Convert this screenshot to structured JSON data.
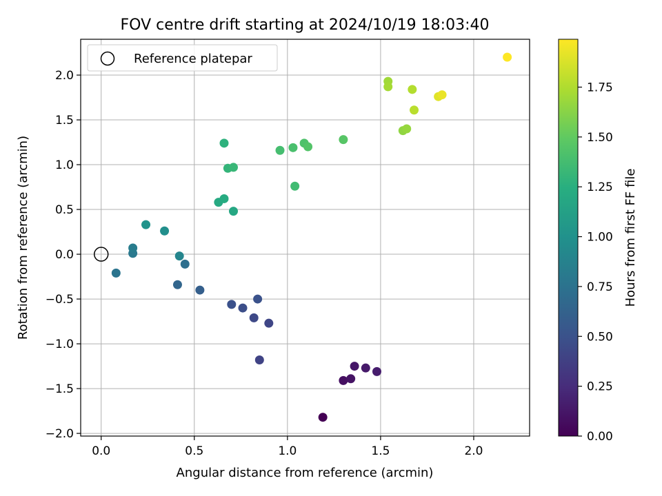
{
  "chart_data": {
    "type": "scatter",
    "title": "FOV centre drift starting at 2024/10/19 18:03:40",
    "xlabel": "Angular distance from reference (arcmin)",
    "ylabel": "Rotation from reference (arcmin)",
    "xlim": [
      -0.11,
      2.3
    ],
    "ylim": [
      -2.03,
      2.4
    ],
    "xticks": [
      0.0,
      0.5,
      1.0,
      1.5,
      2.0
    ],
    "xtick_labels": [
      "0.0",
      "0.5",
      "1.0",
      "1.5",
      "2.0"
    ],
    "yticks": [
      -2.0,
      -1.5,
      -1.0,
      -0.5,
      0.0,
      0.5,
      1.0,
      1.5,
      2.0
    ],
    "ytick_labels": [
      "−2.0",
      "−1.5",
      "−1.0",
      "−0.5",
      "0.0",
      "0.5",
      "1.0",
      "1.5",
      "2.0"
    ],
    "grid": true,
    "legend": {
      "position": "top-left",
      "entries": [
        "Reference platepar"
      ]
    },
    "reference_point": {
      "x": 0.0,
      "y": 0.0
    },
    "colorbar": {
      "label": "Hours from first FF file",
      "colormap": "viridis",
      "range": [
        0,
        1.99
      ],
      "ticks": [
        0.0,
        0.25,
        0.5,
        0.75,
        1.0,
        1.25,
        1.5,
        1.75
      ],
      "tick_labels": [
        "0.00",
        "0.25",
        "0.50",
        "0.75",
        "1.00",
        "1.25",
        "1.50",
        "1.75"
      ]
    },
    "points": [
      {
        "x": 1.19,
        "y": -1.82,
        "c": 0.0
      },
      {
        "x": 1.3,
        "y": -1.41,
        "c": 0.08
      },
      {
        "x": 1.34,
        "y": -1.39,
        "c": 0.1
      },
      {
        "x": 1.36,
        "y": -1.25,
        "c": 0.12
      },
      {
        "x": 1.42,
        "y": -1.27,
        "c": 0.14
      },
      {
        "x": 1.48,
        "y": -1.31,
        "c": 0.16
      },
      {
        "x": 0.85,
        "y": -1.18,
        "c": 0.4
      },
      {
        "x": 0.9,
        "y": -0.77,
        "c": 0.42
      },
      {
        "x": 0.82,
        "y": -0.71,
        "c": 0.44
      },
      {
        "x": 0.76,
        "y": -0.6,
        "c": 0.47
      },
      {
        "x": 0.7,
        "y": -0.56,
        "c": 0.49
      },
      {
        "x": 0.84,
        "y": -0.5,
        "c": 0.5
      },
      {
        "x": 0.53,
        "y": -0.4,
        "c": 0.6
      },
      {
        "x": 0.41,
        "y": -0.34,
        "c": 0.65
      },
      {
        "x": 0.45,
        "y": -0.11,
        "c": 0.72
      },
      {
        "x": 0.08,
        "y": -0.21,
        "c": 0.76
      },
      {
        "x": 0.17,
        "y": 0.01,
        "c": 0.8
      },
      {
        "x": 0.17,
        "y": 0.07,
        "c": 0.83
      },
      {
        "x": 0.42,
        "y": -0.02,
        "c": 0.9
      },
      {
        "x": 0.34,
        "y": 0.26,
        "c": 0.98
      },
      {
        "x": 0.24,
        "y": 0.33,
        "c": 1.01
      },
      {
        "x": 0.71,
        "y": 0.48,
        "c": 1.18
      },
      {
        "x": 0.63,
        "y": 0.58,
        "c": 1.2
      },
      {
        "x": 0.66,
        "y": 0.62,
        "c": 1.22
      },
      {
        "x": 0.66,
        "y": 1.24,
        "c": 1.27
      },
      {
        "x": 0.68,
        "y": 0.96,
        "c": 1.3
      },
      {
        "x": 0.71,
        "y": 0.97,
        "c": 1.32
      },
      {
        "x": 1.04,
        "y": 0.76,
        "c": 1.36
      },
      {
        "x": 0.96,
        "y": 1.16,
        "c": 1.38
      },
      {
        "x": 1.03,
        "y": 1.19,
        "c": 1.4
      },
      {
        "x": 1.09,
        "y": 1.24,
        "c": 1.42
      },
      {
        "x": 1.11,
        "y": 1.2,
        "c": 1.44
      },
      {
        "x": 1.3,
        "y": 1.28,
        "c": 1.46
      },
      {
        "x": 1.62,
        "y": 1.38,
        "c": 1.65
      },
      {
        "x": 1.64,
        "y": 1.4,
        "c": 1.67
      },
      {
        "x": 1.54,
        "y": 1.93,
        "c": 1.7
      },
      {
        "x": 1.54,
        "y": 1.87,
        "c": 1.72
      },
      {
        "x": 1.67,
        "y": 1.84,
        "c": 1.76
      },
      {
        "x": 1.68,
        "y": 1.61,
        "c": 1.78
      },
      {
        "x": 1.81,
        "y": 1.76,
        "c": 1.9
      },
      {
        "x": 1.83,
        "y": 1.78,
        "c": 1.93
      },
      {
        "x": 2.18,
        "y": 2.2,
        "c": 1.99
      }
    ]
  }
}
